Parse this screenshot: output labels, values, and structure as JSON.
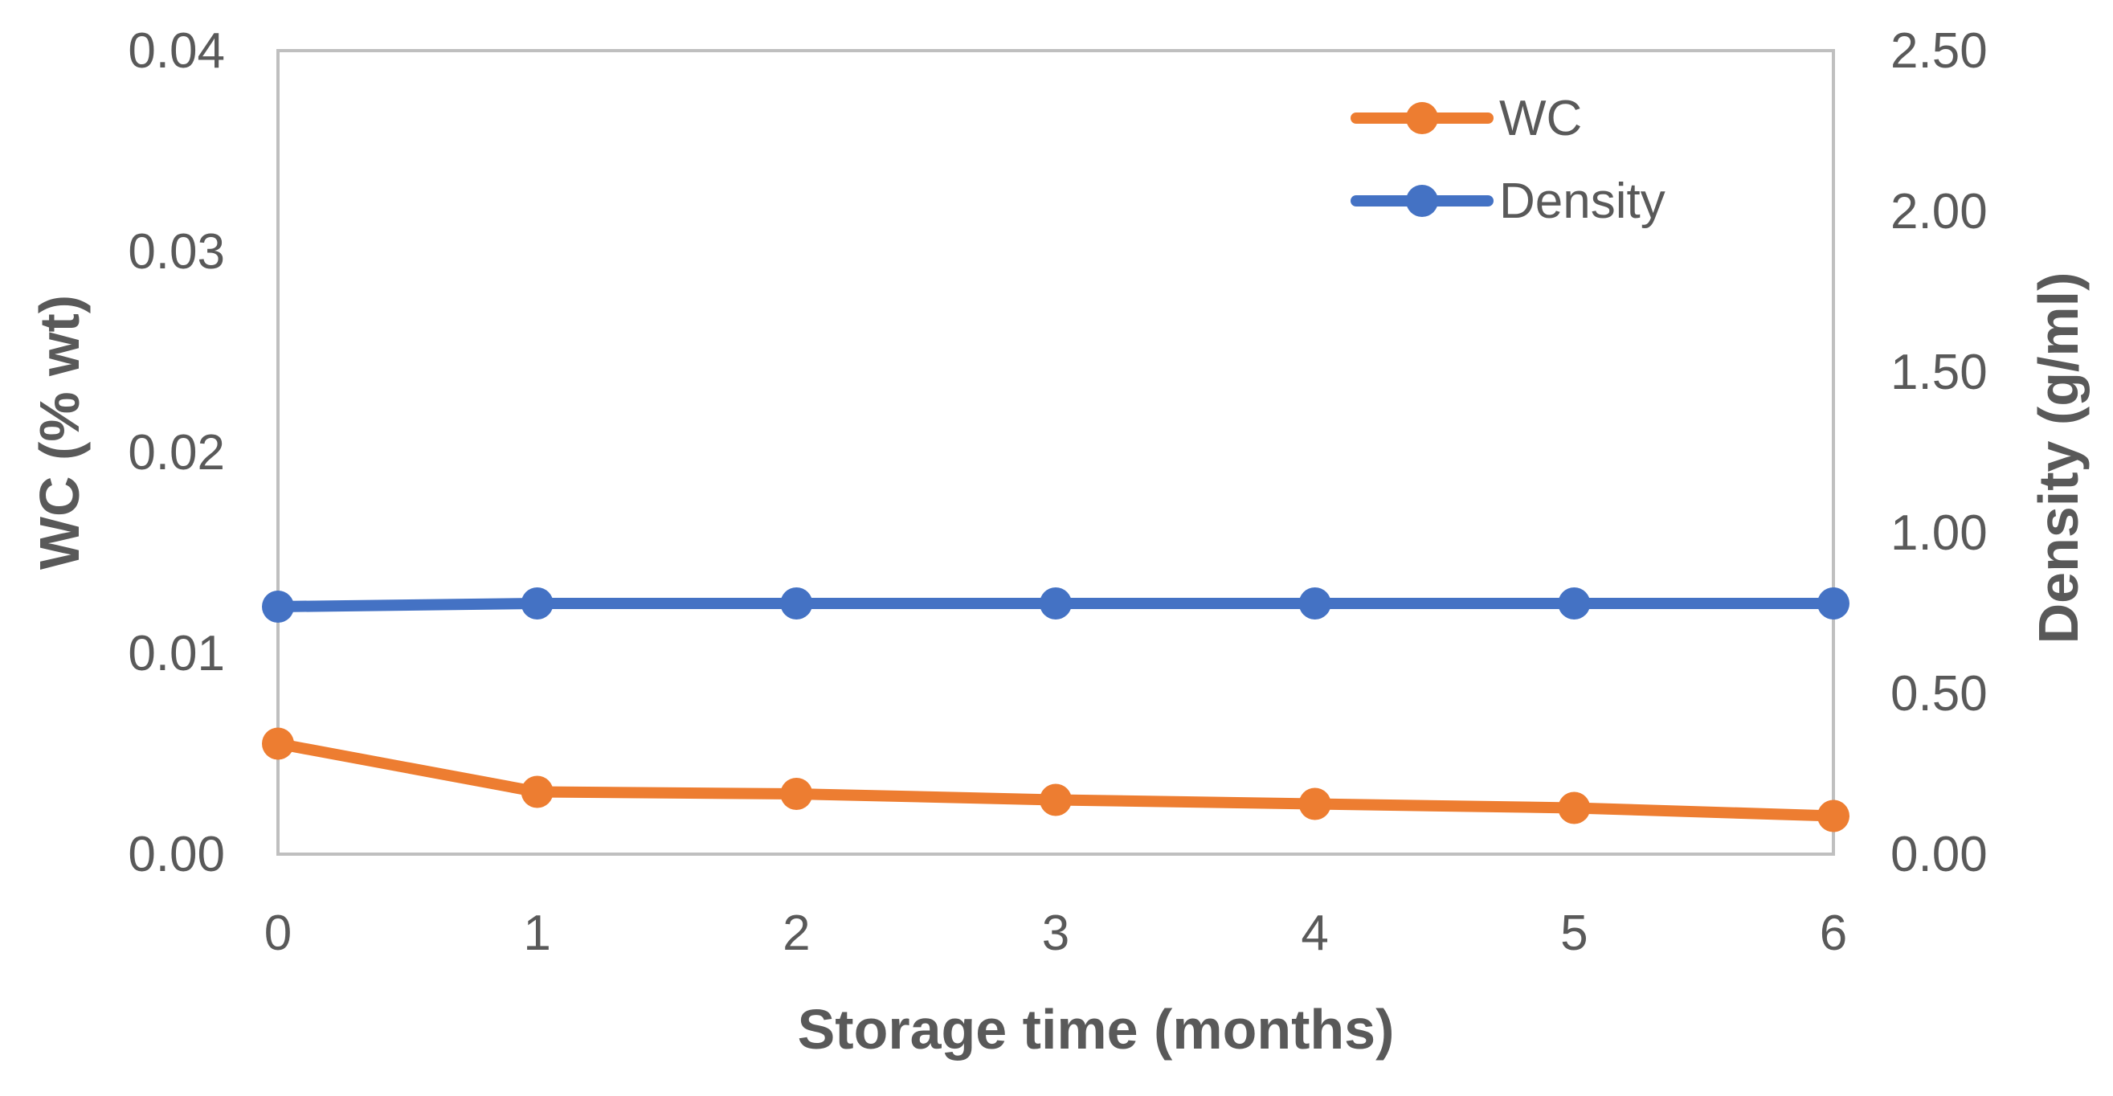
{
  "chart_data": {
    "type": "line",
    "title": "",
    "xlabel": "Storage time (months)",
    "ylabel_left": "WC (% wt)",
    "ylabel_right": "Density (g/ml)",
    "x": [
      0,
      1,
      2,
      3,
      4,
      5,
      6
    ],
    "x_tick_labels": [
      "0",
      "1",
      "2",
      "3",
      "4",
      "5",
      "6"
    ],
    "ylim_left": [
      0,
      0.04
    ],
    "y_ticks_left": [
      "0.00",
      "0.01",
      "0.02",
      "0.03",
      "0.04"
    ],
    "ylim_right": [
      0,
      2.5
    ],
    "y_ticks_right": [
      "0.00",
      "0.50",
      "1.00",
      "1.50",
      "2.00",
      "2.50"
    ],
    "grid": false,
    "legend_position": "top-right",
    "series": [
      {
        "name": "WC",
        "axis": "left",
        "color": "#ED7D31",
        "values": [
          0.0055,
          0.0031,
          0.003,
          0.0027,
          0.0025,
          0.0023,
          0.0019
        ]
      },
      {
        "name": "Density",
        "axis": "right",
        "color": "#4472C4",
        "values": [
          0.77,
          0.78,
          0.78,
          0.78,
          0.78,
          0.78,
          0.78
        ]
      }
    ]
  }
}
